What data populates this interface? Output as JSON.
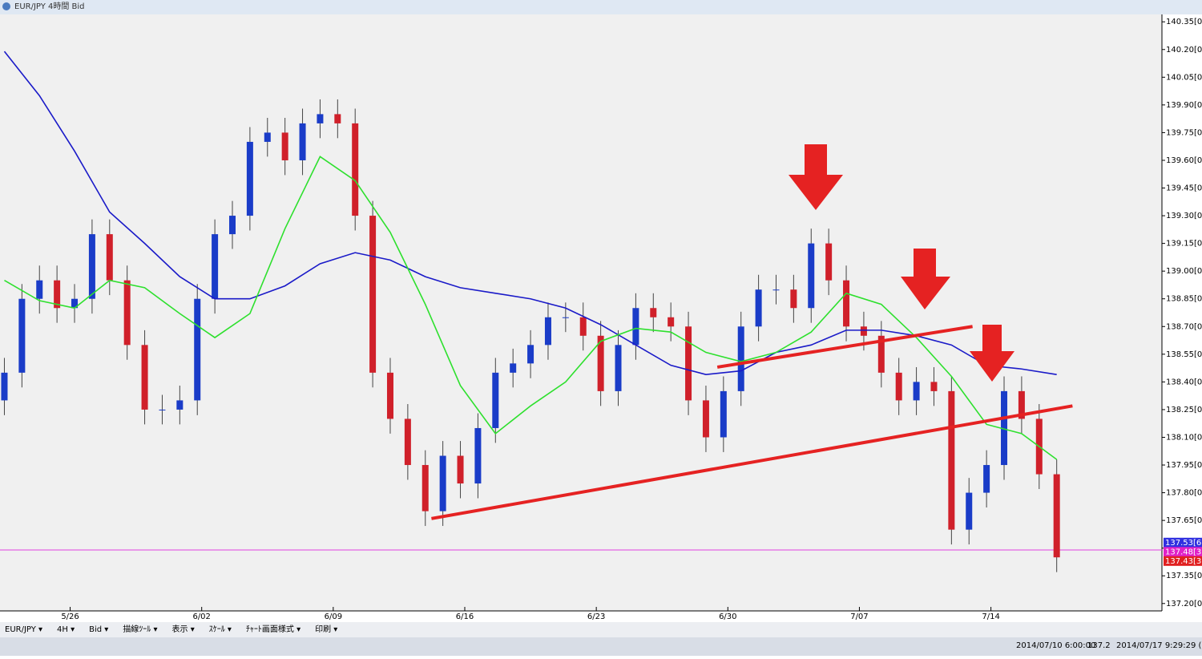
{
  "window_title": "EUR/JPY 4時間 Bid",
  "toolbar": [
    "EUR/JPY ▾",
    "4H ▾",
    "Bid ▾",
    "描線ﾂｰﾙ ▾",
    "表示 ▾",
    "ｽｹｰﾙ ▾",
    "ﾁｬｰﾄ画面様式 ▾",
    "印刷 ▾"
  ],
  "status": [
    "2014/07/10 6:00:00",
    "137.2",
    "2014/07/17 9:29:29 (Lo"
  ],
  "chart_data": {
    "type": "candlestick",
    "xlim": [
      0,
      265
    ],
    "ylim": [
      137.16,
      140.39
    ],
    "xticks": [
      {
        "value": 16,
        "label": "5/26"
      },
      {
        "value": 46,
        "label": "6/02"
      },
      {
        "value": 76,
        "label": "6/09"
      },
      {
        "value": 106,
        "label": "6/16"
      },
      {
        "value": 136,
        "label": "6/23"
      },
      {
        "value": 166,
        "label": "6/30"
      },
      {
        "value": 196,
        "label": "7/07"
      },
      {
        "value": 226,
        "label": "7/14"
      }
    ],
    "yticks": [
      {
        "value": 140.35,
        "label": "140.35[0]"
      },
      {
        "value": 140.2,
        "label": "140.20[0]"
      },
      {
        "value": 140.05,
        "label": "140.05[0]"
      },
      {
        "value": 139.9,
        "label": "139.90[0]"
      },
      {
        "value": 139.75,
        "label": "139.75[0]"
      },
      {
        "value": 139.6,
        "label": "139.60[0]"
      },
      {
        "value": 139.45,
        "label": "139.45[0]"
      },
      {
        "value": 139.3,
        "label": "139.30[0]"
      },
      {
        "value": 139.15,
        "label": "139.15[0]"
      },
      {
        "value": 139,
        "label": "139.00[0]"
      },
      {
        "value": 138.85,
        "label": "138.85[0]"
      },
      {
        "value": 138.7,
        "label": "138.70[0]"
      },
      {
        "value": 138.55,
        "label": "138.55[0]"
      },
      {
        "value": 138.4,
        "label": "138.40[0]"
      },
      {
        "value": 138.25,
        "label": "138.25[0]"
      },
      {
        "value": 138.1,
        "label": "138.10[0]"
      },
      {
        "value": 137.95,
        "label": "137.95[0]"
      },
      {
        "value": 137.8,
        "label": "137.80[0]"
      },
      {
        "value": 137.65,
        "label": "137.65[0]"
      },
      {
        "value": 137.5,
        "label": "137.50[0]"
      },
      {
        "value": 137.35,
        "label": "137.35[0]"
      },
      {
        "value": 137.2,
        "label": "137.20[0]"
      }
    ],
    "up_color": "#1a3cc8",
    "down_color": "#d0202a",
    "x": [
      1,
      5,
      9,
      13,
      17,
      21,
      25,
      29,
      33,
      37,
      41,
      45,
      49,
      53,
      57,
      61,
      65,
      69,
      73,
      77,
      81,
      85,
      89,
      93,
      97,
      101,
      105,
      109,
      113,
      117,
      121,
      125,
      129,
      133,
      137,
      141,
      145,
      149,
      153,
      157,
      161,
      165,
      169,
      173,
      177,
      181,
      185,
      189,
      193,
      197,
      201,
      205,
      209,
      213,
      217,
      221,
      225,
      229,
      233,
      237,
      241
    ],
    "open": [
      138.3,
      138.45,
      138.85,
      138.95,
      138.8,
      138.85,
      139.2,
      138.95,
      138.6,
      138.25,
      138.25,
      138.3,
      138.85,
      139.2,
      139.3,
      139.7,
      139.75,
      139.6,
      139.8,
      139.85,
      139.8,
      139.3,
      138.45,
      138.2,
      137.95,
      137.7,
      138.0,
      137.85,
      138.15,
      138.45,
      138.5,
      138.6,
      138.75,
      138.75,
      138.65,
      138.35,
      138.6,
      138.8,
      138.75,
      138.7,
      138.3,
      138.1,
      138.35,
      138.7,
      138.9,
      138.9,
      138.8,
      139.15,
      138.95,
      138.7,
      138.65,
      138.45,
      138.3,
      138.4,
      138.35,
      137.6,
      137.8,
      137.95,
      138.35,
      138.2,
      137.9
    ],
    "high": [
      138.53,
      138.93,
      139.03,
      139.03,
      138.93,
      139.28,
      139.28,
      139.03,
      138.68,
      138.33,
      138.38,
      138.93,
      139.28,
      139.38,
      139.78,
      139.83,
      139.83,
      139.88,
      139.93,
      139.93,
      139.88,
      139.38,
      138.53,
      138.28,
      138.03,
      138.08,
      138.08,
      138.23,
      138.53,
      138.58,
      138.68,
      138.83,
      138.83,
      138.83,
      138.73,
      138.68,
      138.88,
      138.88,
      138.83,
      138.78,
      138.38,
      138.43,
      138.78,
      138.98,
      138.98,
      138.98,
      139.23,
      139.23,
      139.03,
      138.78,
      138.73,
      138.53,
      138.48,
      138.48,
      138.43,
      137.88,
      138.03,
      138.43,
      138.43,
      138.28,
      137.98
    ],
    "low": [
      138.22,
      138.37,
      138.77,
      138.72,
      138.72,
      138.77,
      138.87,
      138.52,
      138.17,
      138.17,
      138.17,
      138.22,
      138.77,
      139.12,
      139.22,
      139.62,
      139.52,
      139.52,
      139.72,
      139.72,
      139.22,
      138.37,
      138.12,
      137.87,
      137.62,
      137.62,
      137.77,
      137.77,
      138.07,
      138.37,
      138.42,
      138.52,
      138.67,
      138.57,
      138.27,
      138.27,
      138.52,
      138.67,
      138.62,
      138.22,
      138.02,
      138.02,
      138.27,
      138.62,
      138.82,
      138.72,
      138.72,
      138.87,
      138.62,
      138.57,
      138.37,
      138.22,
      138.22,
      138.27,
      137.52,
      137.52,
      137.72,
      137.87,
      138.12,
      137.82,
      137.37
    ],
    "close": [
      138.45,
      138.85,
      138.95,
      138.8,
      138.85,
      139.2,
      138.95,
      138.6,
      138.25,
      138.25,
      138.3,
      138.85,
      139.2,
      139.3,
      139.7,
      139.75,
      139.6,
      139.8,
      139.85,
      139.8,
      139.3,
      138.45,
      138.2,
      137.95,
      137.7,
      138.0,
      137.85,
      138.15,
      138.45,
      138.5,
      138.6,
      138.75,
      138.75,
      138.65,
      138.35,
      138.6,
      138.8,
      138.75,
      138.7,
      138.3,
      138.1,
      138.35,
      138.7,
      138.9,
      138.9,
      138.8,
      139.15,
      138.95,
      138.7,
      138.65,
      138.45,
      138.3,
      138.4,
      138.35,
      137.6,
      137.8,
      137.95,
      138.35,
      138.2,
      137.9,
      137.45
    ],
    "series": [
      {
        "color": "#1a1ac8",
        "x": [
          1,
          9,
          17,
          25,
          33,
          41,
          49,
          57,
          65,
          73,
          81,
          89,
          97,
          105,
          113,
          121,
          129,
          137,
          145,
          153,
          161,
          169,
          177,
          185,
          193,
          201,
          209,
          217,
          225,
          233,
          241
        ],
        "values": [
          140.19,
          139.95,
          139.65,
          139.32,
          139.15,
          138.97,
          138.85,
          138.85,
          138.92,
          139.04,
          139.1,
          139.06,
          138.97,
          138.91,
          138.88,
          138.85,
          138.8,
          138.71,
          138.6,
          138.49,
          138.44,
          138.46,
          138.56,
          138.6,
          138.68,
          138.68,
          138.65,
          138.6,
          138.49,
          138.47,
          138.44
        ]
      },
      {
        "color": "#2ee02e",
        "x": [
          1,
          9,
          17,
          25,
          33,
          41,
          49,
          57,
          65,
          73,
          81,
          89,
          97,
          105,
          113,
          121,
          129,
          137,
          145,
          153,
          161,
          169,
          177,
          185,
          193,
          201,
          209,
          217,
          225,
          233,
          241
        ],
        "values": [
          138.95,
          138.84,
          138.8,
          138.95,
          138.91,
          138.77,
          138.64,
          138.77,
          139.23,
          139.62,
          139.49,
          139.21,
          138.82,
          138.38,
          138.12,
          138.27,
          138.4,
          138.62,
          138.69,
          138.67,
          138.56,
          138.51,
          138.56,
          138.67,
          138.88,
          138.82,
          138.64,
          138.43,
          138.17,
          138.12,
          137.98
        ]
      }
    ],
    "trendlines": [
      {
        "color": "#e52222",
        "x": [
          98.4,
          244.6
        ],
        "values": [
          137.66,
          138.27
        ]
      },
      {
        "color": "#e52222",
        "x": [
          163.6,
          221.8
        ],
        "values": [
          138.48,
          138.7
        ]
      }
    ],
    "hline": {
      "value": 137.49,
      "color": "#e040e0"
    },
    "price_tags": [
      {
        "value": 137.53,
        "label": "137.53[6",
        "color": "#3030e0"
      },
      {
        "value": 137.48,
        "label": "137.48[3",
        "color": "#e020c8"
      },
      {
        "value": 137.43,
        "label": "137.43[3",
        "color": "#e02020"
      }
    ]
  }
}
